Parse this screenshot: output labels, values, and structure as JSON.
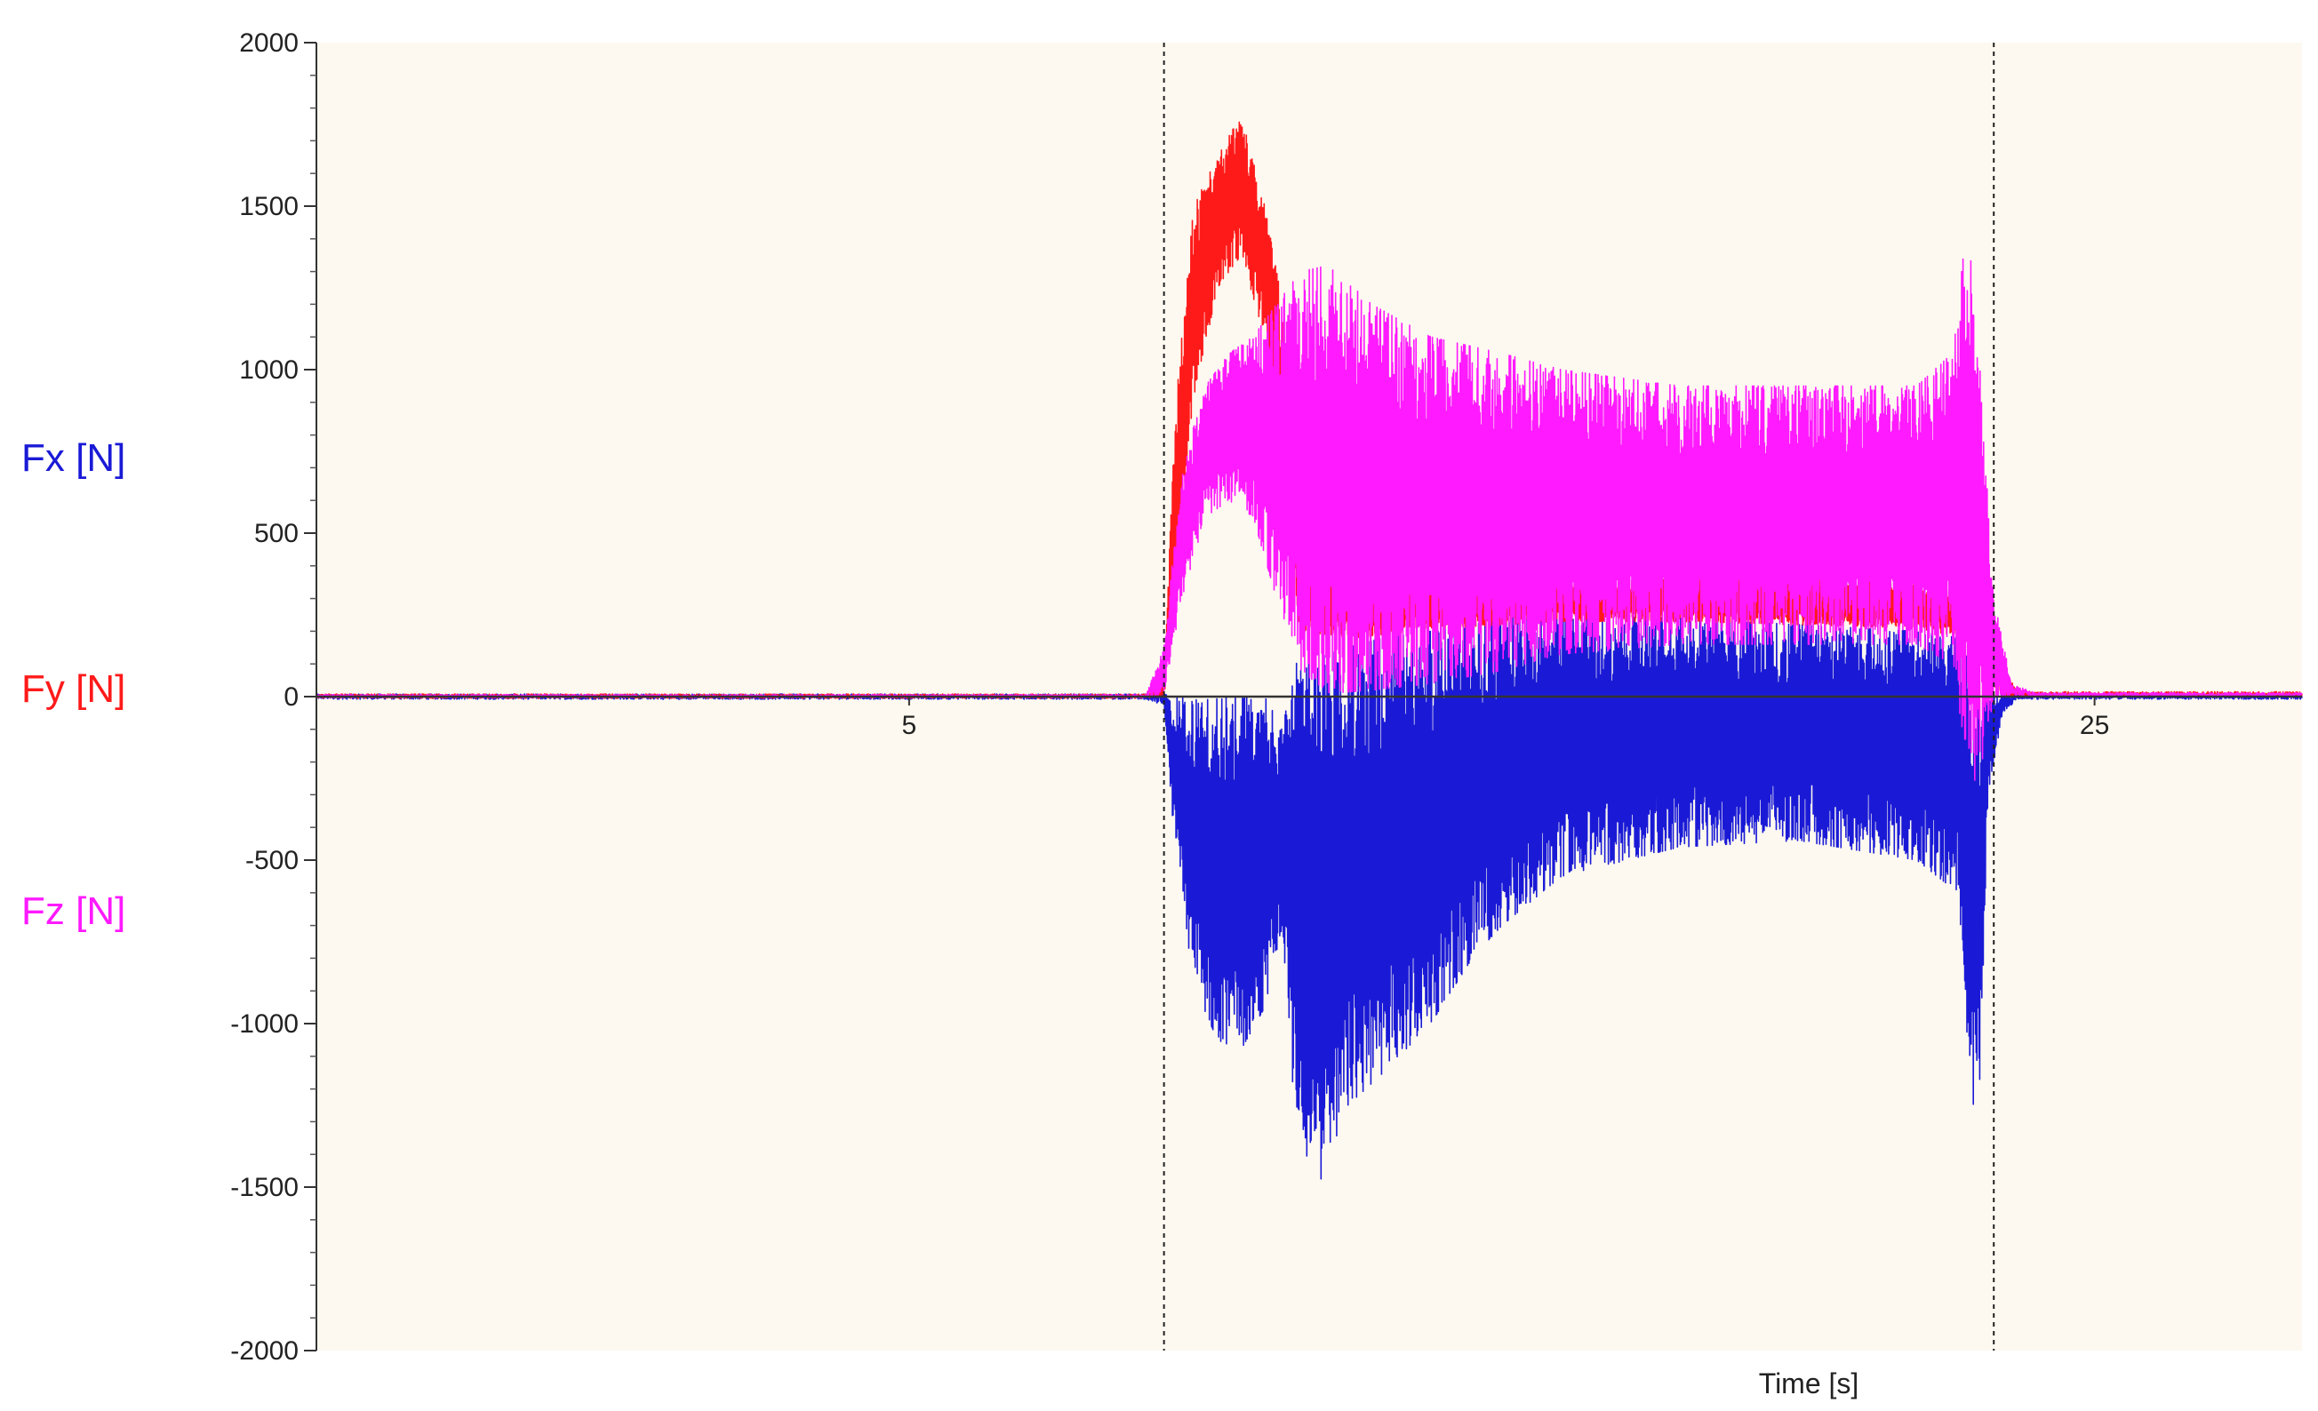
{
  "chart_data": {
    "type": "line",
    "xlabel": "Time [s]",
    "ylabel": "",
    "xlim": [
      -5,
      28.5
    ],
    "ylim": [
      -2000,
      2000
    ],
    "x_ticks": [
      5,
      25
    ],
    "x_tick_labels": [
      "5",
      "25"
    ],
    "y_ticks": [
      2000,
      1500,
      1000,
      500,
      0,
      -500,
      -1000,
      -1500,
      -2000
    ],
    "y_tick_labels": [
      "2000",
      "1500",
      "1000",
      "500",
      "0",
      "-500",
      "-1000",
      "-1500",
      "-2000"
    ],
    "markers_x": [
      9.3,
      23.3
    ],
    "plot_background": "#fdf9f0",
    "legend": [
      {
        "label": "Fx [N]",
        "color": "#1a1ad6"
      },
      {
        "label": "Fy [N]",
        "color": "#ff1a1a"
      },
      {
        "label": "Fz [N]",
        "color": "#ff1aff"
      }
    ],
    "series": [
      {
        "name": "Fx [N]",
        "color": "#1a1ad6",
        "points": [
          {
            "x": -5,
            "lo": -8,
            "hi": 8
          },
          {
            "x": 9.0,
            "lo": -8,
            "hi": 8
          },
          {
            "x": 9.3,
            "lo": -30,
            "hi": 10
          },
          {
            "x": 9.5,
            "lo": -500,
            "hi": 0
          },
          {
            "x": 9.8,
            "lo": -880,
            "hi": 0
          },
          {
            "x": 10.2,
            "lo": -1050,
            "hi": 0
          },
          {
            "x": 10.6,
            "lo": -1080,
            "hi": 0
          },
          {
            "x": 11.0,
            "lo": -950,
            "hi": 0
          },
          {
            "x": 11.3,
            "lo": -700,
            "hi": -100
          },
          {
            "x": 11.5,
            "lo": -1300,
            "hi": 100
          },
          {
            "x": 11.9,
            "lo": -1500,
            "hi": 120
          },
          {
            "x": 12.4,
            "lo": -1250,
            "hi": 150
          },
          {
            "x": 13.0,
            "lo": -1150,
            "hi": 180
          },
          {
            "x": 13.8,
            "lo": -1000,
            "hi": 200
          },
          {
            "x": 14.5,
            "lo": -800,
            "hi": 220
          },
          {
            "x": 15.0,
            "lo": -700,
            "hi": 250
          },
          {
            "x": 16.0,
            "lo": -550,
            "hi": 250
          },
          {
            "x": 18.0,
            "lo": -460,
            "hi": 240
          },
          {
            "x": 20.0,
            "lo": -440,
            "hi": 220
          },
          {
            "x": 22.0,
            "lo": -500,
            "hi": 200
          },
          {
            "x": 22.7,
            "lo": -600,
            "hi": 180
          },
          {
            "x": 22.9,
            "lo": -1200,
            "hi": 100
          },
          {
            "x": 23.05,
            "lo": -1330,
            "hi": 50
          },
          {
            "x": 23.2,
            "lo": -300,
            "hi": 30
          },
          {
            "x": 23.45,
            "lo": -50,
            "hi": 10
          },
          {
            "x": 23.7,
            "lo": -8,
            "hi": 8
          },
          {
            "x": 28.5,
            "lo": -8,
            "hi": 8
          }
        ]
      },
      {
        "name": "Fy [N]",
        "color": "#ff1a1a",
        "points": [
          {
            "x": -5,
            "lo": -5,
            "hi": 8
          },
          {
            "x": 9.0,
            "lo": -5,
            "hi": 8
          },
          {
            "x": 9.3,
            "lo": 0,
            "hi": 60
          },
          {
            "x": 9.5,
            "lo": 300,
            "hi": 900
          },
          {
            "x": 9.8,
            "lo": 900,
            "hi": 1500
          },
          {
            "x": 10.2,
            "lo": 1250,
            "hi": 1650
          },
          {
            "x": 10.6,
            "lo": 1350,
            "hi": 1780
          },
          {
            "x": 11.0,
            "lo": 1100,
            "hi": 1500
          },
          {
            "x": 11.3,
            "lo": 500,
            "hi": 1200
          },
          {
            "x": 11.6,
            "lo": 200,
            "hi": 600
          },
          {
            "x": 12.5,
            "lo": 180,
            "hi": 400
          },
          {
            "x": 14.0,
            "lo": 210,
            "hi": 350
          },
          {
            "x": 16.0,
            "lo": 230,
            "hi": 350
          },
          {
            "x": 18.0,
            "lo": 230,
            "hi": 360
          },
          {
            "x": 20.0,
            "lo": 220,
            "hi": 370
          },
          {
            "x": 22.0,
            "lo": 210,
            "hi": 340
          },
          {
            "x": 22.8,
            "lo": 180,
            "hi": 320
          },
          {
            "x": 23.2,
            "lo": 50,
            "hi": 200
          },
          {
            "x": 23.5,
            "lo": 0,
            "hi": 60
          },
          {
            "x": 23.8,
            "lo": 0,
            "hi": 15
          },
          {
            "x": 28.5,
            "lo": 0,
            "hi": 15
          }
        ]
      },
      {
        "name": "Fz [N]",
        "color": "#ff1aff",
        "points": [
          {
            "x": -5,
            "lo": -3,
            "hi": 6
          },
          {
            "x": 9.0,
            "lo": -3,
            "hi": 6
          },
          {
            "x": 9.3,
            "lo": 10,
            "hi": 150
          },
          {
            "x": 9.6,
            "lo": 300,
            "hi": 700
          },
          {
            "x": 10.0,
            "lo": 550,
            "hi": 950
          },
          {
            "x": 10.4,
            "lo": 600,
            "hi": 1050
          },
          {
            "x": 10.8,
            "lo": 550,
            "hi": 1100
          },
          {
            "x": 11.2,
            "lo": 300,
            "hi": 1200
          },
          {
            "x": 11.6,
            "lo": 80,
            "hi": 1300
          },
          {
            "x": 12.1,
            "lo": 10,
            "hi": 1320
          },
          {
            "x": 12.8,
            "lo": 20,
            "hi": 1200
          },
          {
            "x": 13.8,
            "lo": 40,
            "hi": 1100
          },
          {
            "x": 15.0,
            "lo": 80,
            "hi": 1050
          },
          {
            "x": 16.0,
            "lo": 130,
            "hi": 1000
          },
          {
            "x": 18.0,
            "lo": 160,
            "hi": 950
          },
          {
            "x": 20.0,
            "lo": 160,
            "hi": 950
          },
          {
            "x": 22.0,
            "lo": 160,
            "hi": 950
          },
          {
            "x": 22.6,
            "lo": 100,
            "hi": 1050
          },
          {
            "x": 22.85,
            "lo": -200,
            "hi": 1450
          },
          {
            "x": 23.0,
            "lo": -300,
            "hi": 1200
          },
          {
            "x": 23.3,
            "lo": 0,
            "hi": 300
          },
          {
            "x": 23.6,
            "lo": 0,
            "hi": 40
          },
          {
            "x": 24.0,
            "lo": 0,
            "hi": 12
          },
          {
            "x": 28.5,
            "lo": 0,
            "hi": 12
          }
        ]
      }
    ]
  }
}
